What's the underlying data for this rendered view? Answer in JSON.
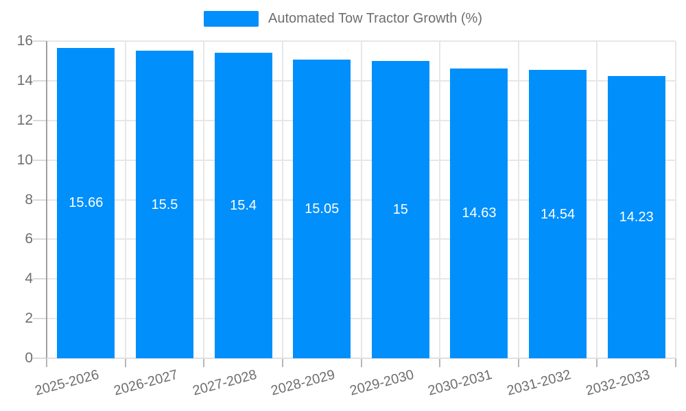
{
  "legend": {
    "label": "Automated Tow Tractor Growth (%)",
    "swatch_color": "#008FFB"
  },
  "chart_data": {
    "type": "bar",
    "title": "Automated Tow Tractor Growth (%)",
    "categories": [
      "2025-2026",
      "2026-2027",
      "2027-2028",
      "2028-2029",
      "2029-2030",
      "2030-2031",
      "2031-2032",
      "2032-2033"
    ],
    "values": [
      15.66,
      15.5,
      15.4,
      15.05,
      15,
      14.63,
      14.54,
      14.23
    ],
    "value_labels": [
      "15.66",
      "15.5",
      "15.4",
      "15.05",
      "15",
      "14.63",
      "14.54",
      "14.23"
    ],
    "ytick_labels": [
      "0",
      "2",
      "4",
      "6",
      "8",
      "10",
      "12",
      "14",
      "16"
    ],
    "ylim": [
      0,
      16
    ],
    "ytick_step": 2,
    "xlabel": "",
    "ylabel": "",
    "legend_position": "top",
    "grid": true,
    "bar_color": "#008FFB",
    "grid_color": "#e7e7e7",
    "axis_color": "#9f9f9f",
    "label_color": "#6e6e6e",
    "value_label_color": "#ffffff"
  }
}
